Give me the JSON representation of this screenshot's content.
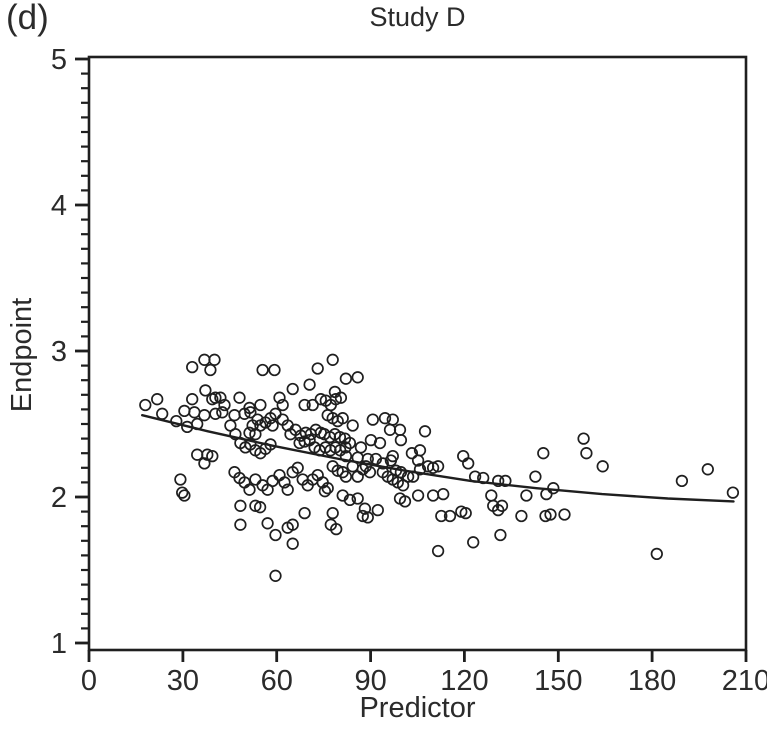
{
  "figure_label": "(d)",
  "title": "Study D",
  "xlabel": "Predictor",
  "ylabel": "Endpoint",
  "colors": {
    "ink": "#1f1f1f",
    "marker": "#1f1f1f",
    "curve": "#1f1f1f"
  },
  "chart_data": {
    "type": "scatter",
    "title": "Study D",
    "xlabel": "Predictor",
    "ylabel": "Endpoint",
    "xlim": [
      0,
      210
    ],
    "ylim": [
      1,
      5
    ],
    "x_ticks": [
      0,
      30,
      60,
      90,
      120,
      150,
      180,
      210
    ],
    "y_ticks": [
      1,
      2,
      3,
      4,
      5
    ],
    "y_minor_tick_step": 0.1,
    "grid": false,
    "legend": "none",
    "marker": "open-circle",
    "trend_curve": {
      "type": "decreasing-concave-fit",
      "samples": [
        [
          17,
          2.56
        ],
        [
          38,
          2.45
        ],
        [
          59,
          2.35
        ],
        [
          80,
          2.26
        ],
        [
          101,
          2.18
        ],
        [
          122,
          2.11
        ],
        [
          143,
          2.06
        ],
        [
          164,
          2.02
        ],
        [
          185,
          1.99
        ],
        [
          206,
          1.97
        ]
      ]
    },
    "points": [
      [
        18.0,
        2.63
      ],
      [
        21.8,
        2.67
      ],
      [
        23.4,
        2.57
      ],
      [
        27.9,
        2.52
      ],
      [
        33.0,
        2.89
      ],
      [
        36.9,
        2.94
      ],
      [
        40.1,
        2.94
      ],
      [
        38.8,
        2.87
      ],
      [
        55.5,
        2.87
      ],
      [
        59.3,
        2.87
      ],
      [
        73.1,
        2.88
      ],
      [
        77.9,
        2.94
      ],
      [
        82.1,
        2.81
      ],
      [
        85.9,
        2.82
      ],
      [
        65.1,
        2.74
      ],
      [
        70.5,
        2.77
      ],
      [
        78.6,
        2.72
      ],
      [
        37.2,
        2.73
      ],
      [
        39.4,
        2.67
      ],
      [
        40.4,
        2.68
      ],
      [
        42.0,
        2.68
      ],
      [
        43.3,
        2.63
      ],
      [
        48.1,
        2.68
      ],
      [
        51.3,
        2.61
      ],
      [
        54.8,
        2.63
      ],
      [
        60.9,
        2.68
      ],
      [
        61.9,
        2.63
      ],
      [
        68.9,
        2.63
      ],
      [
        71.5,
        2.63
      ],
      [
        33.0,
        2.67
      ],
      [
        30.5,
        2.59
      ],
      [
        33.7,
        2.58
      ],
      [
        36.9,
        2.56
      ],
      [
        34.6,
        2.5
      ],
      [
        31.4,
        2.48
      ],
      [
        40.4,
        2.57
      ],
      [
        42.6,
        2.58
      ],
      [
        46.5,
        2.56
      ],
      [
        45.2,
        2.49
      ],
      [
        46.8,
        2.43
      ],
      [
        49.7,
        2.57
      ],
      [
        51.6,
        2.58
      ],
      [
        53.9,
        2.53
      ],
      [
        52.3,
        2.49
      ],
      [
        51.3,
        2.44
      ],
      [
        53.2,
        2.43
      ],
      [
        54.8,
        2.49
      ],
      [
        56.4,
        2.51
      ],
      [
        58.0,
        2.54
      ],
      [
        58.7,
        2.49
      ],
      [
        59.6,
        2.57
      ],
      [
        61.9,
        2.53
      ],
      [
        63.5,
        2.49
      ],
      [
        64.4,
        2.43
      ],
      [
        66.0,
        2.46
      ],
      [
        67.7,
        2.42
      ],
      [
        69.3,
        2.44
      ],
      [
        70.9,
        2.43
      ],
      [
        72.5,
        2.46
      ],
      [
        74.1,
        2.44
      ],
      [
        48.4,
        2.37
      ],
      [
        50.0,
        2.34
      ],
      [
        51.6,
        2.36
      ],
      [
        53.2,
        2.32
      ],
      [
        54.8,
        2.3
      ],
      [
        56.4,
        2.33
      ],
      [
        58.0,
        2.36
      ],
      [
        34.6,
        2.29
      ],
      [
        37.8,
        2.29
      ],
      [
        39.4,
        2.28
      ],
      [
        36.9,
        2.23
      ],
      [
        29.2,
        2.12
      ],
      [
        29.8,
        2.03
      ],
      [
        46.5,
        2.17
      ],
      [
        48.1,
        2.13
      ],
      [
        49.7,
        2.1
      ],
      [
        51.3,
        2.05
      ],
      [
        53.2,
        2.12
      ],
      [
        55.5,
        2.08
      ],
      [
        57.1,
        2.05
      ],
      [
        58.7,
        2.11
      ],
      [
        60.9,
        2.15
      ],
      [
        62.5,
        2.1
      ],
      [
        63.5,
        2.05
      ],
      [
        65.1,
        2.17
      ],
      [
        66.7,
        2.2
      ],
      [
        68.3,
        2.12
      ],
      [
        69.9,
        2.08
      ],
      [
        71.5,
        2.12
      ],
      [
        73.1,
        2.15
      ],
      [
        74.7,
        2.1
      ],
      [
        30.5,
        2.01
      ],
      [
        48.4,
        1.94
      ],
      [
        53.2,
        1.94
      ],
      [
        54.7,
        1.93
      ],
      [
        48.4,
        1.81
      ],
      [
        57.1,
        1.82
      ],
      [
        59.6,
        1.74
      ],
      [
        63.5,
        1.79
      ],
      [
        65.1,
        1.81
      ],
      [
        68.9,
        1.89
      ],
      [
        65.1,
        1.68
      ],
      [
        77.9,
        1.89
      ],
      [
        77.3,
        1.81
      ],
      [
        79.0,
        1.78
      ],
      [
        59.6,
        1.46
      ],
      [
        77.9,
        2.21
      ],
      [
        79.5,
        2.18
      ],
      [
        76.3,
        2.06
      ],
      [
        75.4,
        2.04
      ],
      [
        74.1,
        2.67
      ],
      [
        75.7,
        2.66
      ],
      [
        77.3,
        2.63
      ],
      [
        78.9,
        2.67
      ],
      [
        80.5,
        2.68
      ],
      [
        76.3,
        2.56
      ],
      [
        77.9,
        2.54
      ],
      [
        79.5,
        2.52
      ],
      [
        81.1,
        2.54
      ],
      [
        75.2,
        2.43
      ],
      [
        77.0,
        2.41
      ],
      [
        78.6,
        2.43
      ],
      [
        80.2,
        2.41
      ],
      [
        81.8,
        2.4
      ],
      [
        70.5,
        2.39
      ],
      [
        68.9,
        2.38
      ],
      [
        67.3,
        2.37
      ],
      [
        72.1,
        2.34
      ],
      [
        73.7,
        2.32
      ],
      [
        75.6,
        2.34
      ],
      [
        77.2,
        2.32
      ],
      [
        78.8,
        2.34
      ],
      [
        80.3,
        2.32
      ],
      [
        82.0,
        2.34
      ],
      [
        84.3,
        2.49
      ],
      [
        90.7,
        2.53
      ],
      [
        94.6,
        2.54
      ],
      [
        97.1,
        2.53
      ],
      [
        96.2,
        2.46
      ],
      [
        99.4,
        2.46
      ],
      [
        99.7,
        2.39
      ],
      [
        90.1,
        2.39
      ],
      [
        93.0,
        2.37
      ],
      [
        107.4,
        2.45
      ],
      [
        97.1,
        2.28
      ],
      [
        105.8,
        2.32
      ],
      [
        105.2,
        2.25
      ],
      [
        103.2,
        2.3
      ],
      [
        119.6,
        2.28
      ],
      [
        121.2,
        2.23
      ],
      [
        145.2,
        2.3
      ],
      [
        83.4,
        2.37
      ],
      [
        86.9,
        2.34
      ],
      [
        82.1,
        2.28
      ],
      [
        85.9,
        2.27
      ],
      [
        89.1,
        2.26
      ],
      [
        91.7,
        2.26
      ],
      [
        96.5,
        2.25
      ],
      [
        93.9,
        2.23
      ],
      [
        82.1,
        2.14
      ],
      [
        85.9,
        2.14
      ],
      [
        87.5,
        2.19
      ],
      [
        89.8,
        2.17
      ],
      [
        88.5,
        2.21
      ],
      [
        84.3,
        2.21
      ],
      [
        81.1,
        2.17
      ],
      [
        93.9,
        2.17
      ],
      [
        95.5,
        2.14
      ],
      [
        97.1,
        2.12
      ],
      [
        98.7,
        2.1
      ],
      [
        100.4,
        2.08
      ],
      [
        99.7,
        2.17
      ],
      [
        102.0,
        2.14
      ],
      [
        103.6,
        2.14
      ],
      [
        98.1,
        2.18
      ],
      [
        105.8,
        2.19
      ],
      [
        108.4,
        2.21
      ],
      [
        110.0,
        2.2
      ],
      [
        111.6,
        2.21
      ],
      [
        123.4,
        2.14
      ],
      [
        126.0,
        2.13
      ],
      [
        130.8,
        2.11
      ],
      [
        133.1,
        2.11
      ],
      [
        142.7,
        2.14
      ],
      [
        148.4,
        2.06
      ],
      [
        146.2,
        2.02
      ],
      [
        128.6,
        2.01
      ],
      [
        139.8,
        2.01
      ],
      [
        81.1,
        2.01
      ],
      [
        83.4,
        1.98
      ],
      [
        85.9,
        1.99
      ],
      [
        88.2,
        1.92
      ],
      [
        92.3,
        1.91
      ],
      [
        87.5,
        1.87
      ],
      [
        89.1,
        1.86
      ],
      [
        99.4,
        1.99
      ],
      [
        101.0,
        1.97
      ],
      [
        105.2,
        2.01
      ],
      [
        110.0,
        2.01
      ],
      [
        113.2,
        2.02
      ],
      [
        112.6,
        1.87
      ],
      [
        115.4,
        1.87
      ],
      [
        119.0,
        1.9
      ],
      [
        120.4,
        1.89
      ],
      [
        129.2,
        1.94
      ],
      [
        130.8,
        1.91
      ],
      [
        132.0,
        1.94
      ],
      [
        138.2,
        1.87
      ],
      [
        111.6,
        1.63
      ],
      [
        122.8,
        1.69
      ],
      [
        131.5,
        1.74
      ],
      [
        158.1,
        2.4
      ],
      [
        159.0,
        2.3
      ],
      [
        164.2,
        2.21
      ],
      [
        145.9,
        1.87
      ],
      [
        147.5,
        1.88
      ],
      [
        152.0,
        1.88
      ],
      [
        181.5,
        1.61
      ],
      [
        189.5,
        2.11
      ],
      [
        197.8,
        2.19
      ],
      [
        205.8,
        2.03
      ]
    ]
  }
}
